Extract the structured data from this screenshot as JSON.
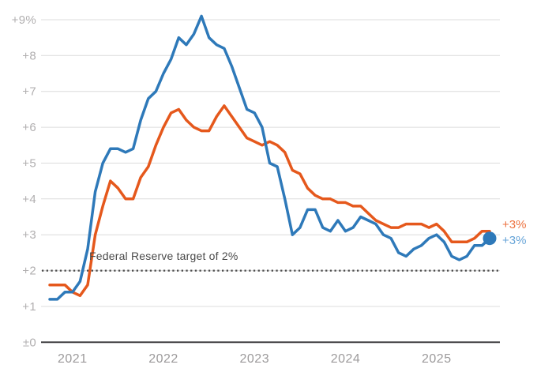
{
  "chart_data": {
    "type": "line",
    "title": "",
    "y_axis": {
      "ticks": [
        {
          "label": "±0",
          "value": 0
        },
        {
          "label": "+1",
          "value": 1
        },
        {
          "label": "+2",
          "value": 2
        },
        {
          "label": "+3",
          "value": 3
        },
        {
          "label": "+4",
          "value": 4
        },
        {
          "label": "+5",
          "value": 5
        },
        {
          "label": "+6",
          "value": 6
        },
        {
          "label": "+7",
          "value": 7
        },
        {
          "label": "+8",
          "value": 8
        },
        {
          "label": "+9%",
          "value": 9
        }
      ],
      "ylim": [
        0,
        9.5
      ],
      "grid": true
    },
    "x_axis": {
      "ticks": [
        {
          "label": "2021",
          "index": 3
        },
        {
          "label": "2022",
          "index": 15
        },
        {
          "label": "2023",
          "index": 27
        },
        {
          "label": "2024",
          "index": 39
        },
        {
          "label": "2025",
          "index": 51
        }
      ],
      "points_per_year": 12
    },
    "target_line": {
      "label": "Federal Reserve target of 2%",
      "value": 2,
      "color": "#4c4c4c",
      "style": "dotted"
    },
    "series": [
      {
        "name": "orange-line",
        "color": "#e5581c",
        "end_label": "+3%",
        "end_label_color": "#ed7240",
        "end_dot": false,
        "values": [
          1.6,
          1.6,
          1.6,
          1.4,
          1.3,
          1.6,
          3.0,
          3.8,
          4.5,
          4.3,
          4.0,
          4.0,
          4.6,
          4.9,
          5.5,
          6.0,
          6.4,
          6.5,
          6.2,
          6.0,
          5.9,
          5.9,
          6.3,
          6.6,
          6.3,
          6.0,
          5.7,
          5.6,
          5.5,
          5.6,
          5.5,
          5.3,
          4.8,
          4.7,
          4.3,
          4.1,
          4.0,
          4.0,
          3.9,
          3.9,
          3.8,
          3.8,
          3.6,
          3.4,
          3.3,
          3.2,
          3.2,
          3.3,
          3.3,
          3.3,
          3.2,
          3.3,
          3.1,
          2.8,
          2.8,
          2.8,
          2.9,
          3.1,
          3.1
        ]
      },
      {
        "name": "blue-line",
        "color": "#2e79b9",
        "end_label": "+3%",
        "end_label_color": "#68a5d8",
        "end_dot": true,
        "values": [
          1.2,
          1.2,
          1.4,
          1.4,
          1.7,
          2.6,
          4.2,
          5.0,
          5.4,
          5.4,
          5.3,
          5.4,
          6.2,
          6.8,
          7.0,
          7.5,
          7.9,
          8.5,
          8.3,
          8.6,
          9.1,
          8.5,
          8.3,
          8.2,
          7.7,
          7.1,
          6.5,
          6.4,
          6.0,
          5.0,
          4.9,
          4.0,
          3.0,
          3.2,
          3.7,
          3.7,
          3.2,
          3.1,
          3.4,
          3.1,
          3.2,
          3.5,
          3.4,
          3.3,
          3.0,
          2.9,
          2.5,
          2.4,
          2.6,
          2.7,
          2.9,
          3.0,
          2.8,
          2.4,
          2.3,
          2.4,
          2.7,
          2.7,
          2.9
        ]
      }
    ],
    "axis_colors": {
      "y_tick_label": "#b1afb0",
      "x_tick_label": "#9c9a9b",
      "gridline": "#dcdcdc",
      "baseline": "#414042"
    }
  }
}
